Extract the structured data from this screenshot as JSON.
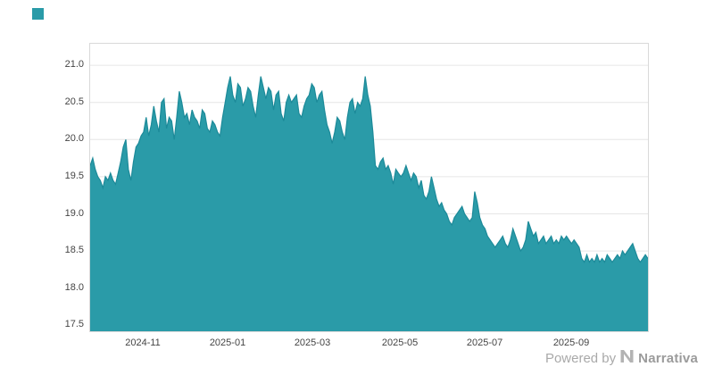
{
  "brand": {
    "accent_color": "#2A9BA8"
  },
  "footer": {
    "powered_by": "Powered by",
    "brand_name": "Narrativa"
  },
  "chart_data": {
    "type": "area",
    "title": "",
    "xlabel": "",
    "ylabel": "",
    "legend": "none",
    "grid": "horizontal",
    "series_color": "#2A9BA8",
    "line_color": "#1C8A99",
    "grid_color": "#e6e6e6",
    "ylim": [
      17.42,
      21.29
    ],
    "y_ticks": [
      {
        "label": "21.0",
        "value": 21.0
      },
      {
        "label": "20.5",
        "value": 20.5
      },
      {
        "label": "20.0",
        "value": 20.0
      },
      {
        "label": "19.5",
        "value": 19.5
      },
      {
        "label": "19.0",
        "value": 19.0
      },
      {
        "label": "18.5",
        "value": 18.5
      },
      {
        "label": "18.0",
        "value": 18.0
      },
      {
        "label": "17.5",
        "value": 17.5
      }
    ],
    "x_ticks": [
      {
        "label": "2024-11",
        "pos": 0.096
      },
      {
        "label": "2025-01",
        "pos": 0.248
      },
      {
        "label": "2025-03",
        "pos": 0.4
      },
      {
        "label": "2025-05",
        "pos": 0.557
      },
      {
        "label": "2025-07",
        "pos": 0.709
      },
      {
        "label": "2025-09",
        "pos": 0.864
      }
    ],
    "values": [
      19.65,
      19.75,
      19.6,
      19.5,
      19.45,
      19.35,
      19.5,
      19.45,
      19.55,
      19.45,
      19.4,
      19.55,
      19.7,
      19.9,
      20.0,
      19.6,
      19.45,
      19.7,
      19.9,
      19.95,
      20.05,
      20.1,
      20.3,
      20.05,
      20.2,
      20.45,
      20.25,
      20.1,
      20.5,
      20.55,
      20.15,
      20.3,
      20.25,
      20.0,
      20.3,
      20.65,
      20.5,
      20.3,
      20.35,
      20.2,
      20.4,
      20.3,
      20.25,
      20.15,
      20.4,
      20.35,
      20.15,
      20.1,
      20.25,
      20.2,
      20.1,
      20.05,
      20.3,
      20.5,
      20.7,
      20.85,
      20.6,
      20.5,
      20.75,
      20.7,
      20.45,
      20.55,
      20.7,
      20.65,
      20.45,
      20.3,
      20.6,
      20.85,
      20.7,
      20.55,
      20.7,
      20.65,
      20.4,
      20.6,
      20.65,
      20.35,
      20.25,
      20.5,
      20.6,
      20.5,
      20.55,
      20.6,
      20.35,
      20.3,
      20.45,
      20.55,
      20.6,
      20.75,
      20.7,
      20.5,
      20.6,
      20.65,
      20.4,
      20.2,
      20.1,
      19.95,
      20.1,
      20.3,
      20.25,
      20.1,
      20.0,
      20.3,
      20.5,
      20.55,
      20.35,
      20.5,
      20.45,
      20.55,
      20.85,
      20.6,
      20.45,
      20.1,
      19.65,
      19.6,
      19.7,
      19.75,
      19.6,
      19.65,
      19.55,
      19.4,
      19.6,
      19.55,
      19.5,
      19.55,
      19.65,
      19.55,
      19.45,
      19.55,
      19.5,
      19.35,
      19.45,
      19.25,
      19.2,
      19.3,
      19.5,
      19.35,
      19.2,
      19.1,
      19.15,
      19.05,
      19.0,
      18.9,
      18.85,
      18.95,
      19.0,
      19.05,
      19.1,
      19.0,
      18.95,
      18.9,
      18.95,
      19.3,
      19.15,
      18.95,
      18.85,
      18.8,
      18.7,
      18.65,
      18.6,
      18.55,
      18.6,
      18.65,
      18.7,
      18.6,
      18.55,
      18.65,
      18.8,
      18.7,
      18.6,
      18.5,
      18.55,
      18.65,
      18.9,
      18.8,
      18.7,
      18.75,
      18.6,
      18.65,
      18.7,
      18.6,
      18.65,
      18.7,
      18.6,
      18.65,
      18.6,
      18.7,
      18.65,
      18.7,
      18.65,
      18.6,
      18.65,
      18.6,
      18.55,
      18.4,
      18.35,
      18.45,
      18.35,
      18.4,
      18.35,
      18.45,
      18.35,
      18.4,
      18.35,
      18.45,
      18.4,
      18.35,
      18.4,
      18.45,
      18.4,
      18.5,
      18.45,
      18.5,
      18.55,
      18.6,
      18.5,
      18.4,
      18.35,
      18.4,
      18.45,
      18.4
    ]
  }
}
